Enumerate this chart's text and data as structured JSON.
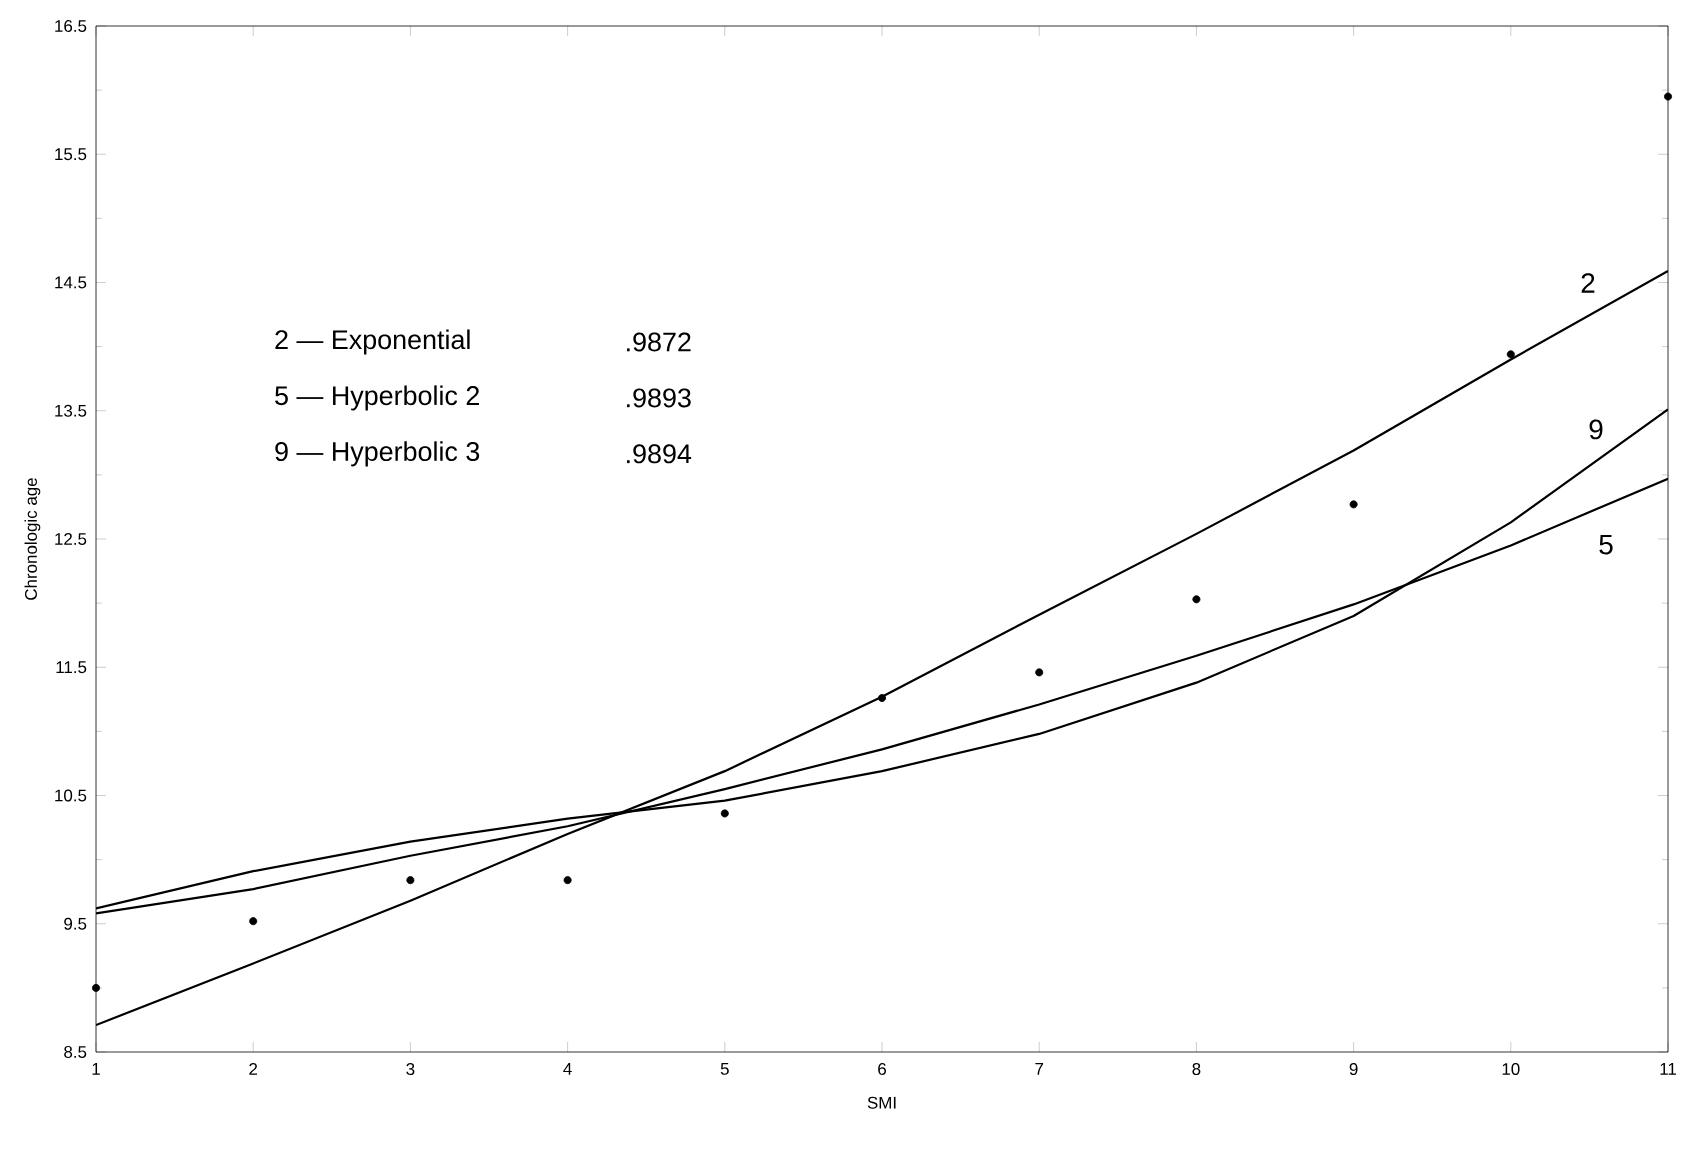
{
  "chart_data": {
    "type": "line",
    "xlabel": "SMI",
    "ylabel": "Chronologic age",
    "xlim": [
      1,
      11
    ],
    "xticks": [
      1,
      2,
      3,
      4,
      5,
      6,
      7,
      8,
      9,
      10,
      11
    ],
    "ylim": [
      8.5,
      16.5
    ],
    "yticks": [
      8.5,
      9.5,
      10.5,
      11.5,
      12.5,
      13.5,
      14.5,
      15.5,
      16.5
    ],
    "grid": false,
    "legend": false,
    "annotations": [
      "2 — Exponential",
      ".9872",
      "5 — Hyperbolic 2",
      ".9893",
      "9 — Hyperbolic 3",
      ".9894"
    ],
    "series": [
      {
        "type": "scatter",
        "marker": "circle",
        "color": "#000000",
        "x": [
          1,
          2,
          3,
          4,
          5,
          6,
          7,
          8,
          9,
          10,
          11
        ],
        "values": [
          9.0,
          9.52,
          9.84,
          9.84,
          10.36,
          11.26,
          11.46,
          12.03,
          12.77,
          13.94,
          15.95
        ]
      },
      {
        "name": "2",
        "marker": "none",
        "line_style": "solid",
        "color": "#000000",
        "x": [
          1,
          2,
          3,
          4,
          5,
          6,
          7,
          8,
          9,
          10,
          11
        ],
        "values": [
          8.71,
          9.19,
          9.68,
          10.2,
          10.69,
          11.27,
          11.91,
          12.54,
          13.19,
          13.9,
          14.59
        ]
      },
      {
        "name": "5",
        "marker": "none",
        "line_style": "solid",
        "color": "#000000",
        "x": [
          1,
          2,
          3,
          4,
          5,
          6,
          7,
          8,
          9,
          10,
          11
        ],
        "values": [
          9.58,
          9.77,
          10.03,
          10.26,
          10.55,
          10.86,
          11.21,
          11.59,
          11.99,
          12.45,
          12.97
        ]
      },
      {
        "name": "9",
        "marker": "none",
        "line_style": "solid",
        "color": "#000000",
        "x": [
          1,
          2,
          3,
          4,
          5,
          6,
          7,
          8,
          9,
          10,
          11
        ],
        "values": [
          9.62,
          9.91,
          10.14,
          10.32,
          10.46,
          10.69,
          10.98,
          11.38,
          11.9,
          12.63,
          13.51
        ]
      }
    ]
  }
}
